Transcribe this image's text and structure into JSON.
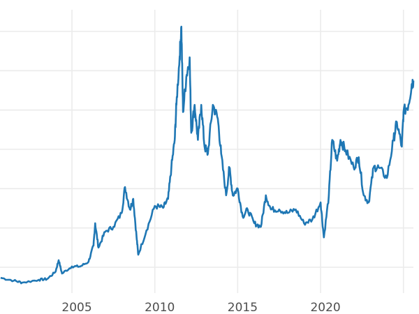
{
  "chart_data": {
    "type": "line",
    "title": "",
    "xlabel": "",
    "ylabel": "",
    "xlim": [
      2000.66,
      2025.6
    ],
    "ylim": [
      4,
      72
    ],
    "grid": true,
    "legend": "none",
    "line_color": "#1f77b4",
    "x_ticks": [
      2005,
      2010,
      2015,
      2020,
      2025
    ],
    "x_tick_labels": [
      "2005",
      "2010",
      "2015",
      "2020",
      ""
    ],
    "y_gridlines": [
      10,
      20,
      30,
      40,
      50,
      60,
      70
    ],
    "y_tick_labels": [],
    "series": [
      {
        "x": [
          2000.7,
          2001.5,
          2002,
          2003,
          2003.5,
          2004,
          2004.2,
          2004.4,
          2005,
          2005.5,
          2006,
          2006.3,
          2006.4,
          2006.6,
          2007,
          2007.5,
          2008,
          2008.2,
          2008.5,
          2008.7,
          2008.9,
          2009.0,
          2009.5,
          2010,
          2010.5,
          2010.8,
          2011,
          2011.2,
          2011.3,
          2011.5,
          2011.6,
          2011.7,
          2011.9,
          2012.1,
          2012.2,
          2012.4,
          2012.6,
          2012.8,
          2013,
          2013.2,
          2013.5,
          2013.8,
          2014,
          2014.3,
          2014.5,
          2014.7,
          2015,
          2015.3,
          2015.6,
          2016,
          2016.4,
          2016.7,
          2017,
          2017.5,
          2018,
          2018.5,
          2019,
          2019.5,
          2020,
          2020.2,
          2020.5,
          2020.7,
          2021,
          2021.2,
          2021.5,
          2022,
          2022.3,
          2022.6,
          2022.9,
          2023.2,
          2023.5,
          2024,
          2024.4,
          2024.6,
          2024.9,
          2025.0,
          2025.3,
          2025.5,
          2025.6
        ],
        "y": [
          7.3,
          6.6,
          6.1,
          6.8,
          7.0,
          8.8,
          11.8,
          8.4,
          10.2,
          10.2,
          11.4,
          15.5,
          21.2,
          15.0,
          19.0,
          20.3,
          23.8,
          30.4,
          24.7,
          27.4,
          17.6,
          13.2,
          19.4,
          25.6,
          25.1,
          27.4,
          35.4,
          42.4,
          51.3,
          63.7,
          71.2,
          49.5,
          58.4,
          63.4,
          44.2,
          51.3,
          42.4,
          51.3,
          40.7,
          38.9,
          51.3,
          47.8,
          38.9,
          28.3,
          35.4,
          28.3,
          30.0,
          22.9,
          24.7,
          21.2,
          20.3,
          28.3,
          24.7,
          24.7,
          23.8,
          24.7,
          21.2,
          22.1,
          26.5,
          17.6,
          28.3,
          42.4,
          37.1,
          42.4,
          39.8,
          35.4,
          38.0,
          28.3,
          26.5,
          35.4,
          35.4,
          32.7,
          42.4,
          46.9,
          40.7,
          49.5,
          51.3,
          56.6,
          57.5
        ]
      }
    ]
  }
}
